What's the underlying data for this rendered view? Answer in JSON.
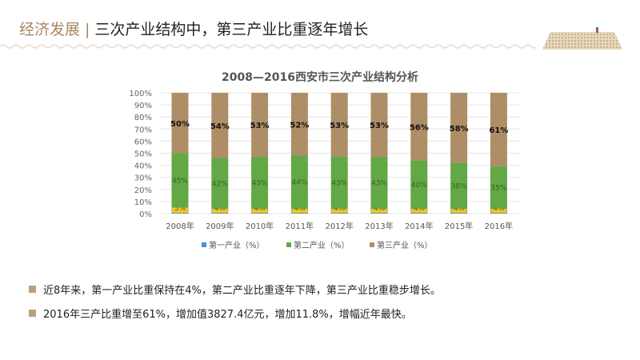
{
  "header": {
    "section": "经济发展",
    "separator": "|",
    "title": "三次产业结构中，第三产业比重逐年增长"
  },
  "colors": {
    "primary": "#4a90d9",
    "secondary": "#62a844",
    "tertiary": "#ae8e67",
    "label_box": "#f5c518",
    "accent": "#a8885e"
  },
  "chart_data": {
    "type": "bar",
    "stacked": true,
    "title": "2008—2016西安市三次产业结构分析",
    "categories": [
      "2008年",
      "2009年",
      "2010年",
      "2011年",
      "2012年",
      "2013年",
      "2014年",
      "2015年",
      "2016年"
    ],
    "series": [
      {
        "name": "第一产业（%）",
        "values": [
          5,
          4,
          4,
          4,
          4,
          4,
          4,
          4,
          4
        ],
        "labels": [
          "5%",
          "4%",
          "4%",
          "4%",
          "4%",
          "4%",
          "4%",
          "4%",
          "4%"
        ]
      },
      {
        "name": "第二产业（%）",
        "values": [
          45,
          42,
          43,
          44,
          43,
          43,
          40,
          38,
          35
        ],
        "labels": [
          "45%",
          "42%",
          "43%",
          "44%",
          "43%",
          "43%",
          "40%",
          "38%",
          "35%"
        ]
      },
      {
        "name": "第三产业（%）",
        "values": [
          50,
          54,
          53,
          52,
          53,
          53,
          56,
          58,
          61
        ],
        "labels": [
          "50%",
          "54%",
          "53%",
          "52%",
          "53%",
          "53%",
          "56%",
          "58%",
          "61%"
        ]
      }
    ],
    "yticks": [
      "0%",
      "10%",
      "20%",
      "30%",
      "40%",
      "50%",
      "60%",
      "70%",
      "80%",
      "90%",
      "100%"
    ],
    "ylim": [
      0,
      100
    ],
    "grid": true,
    "legend": "bottom"
  },
  "notes": [
    "近8年来，第一产业比重保持在4%，第二产业比重逐年下降，第三产业比重稳步增长。",
    "2016年三产比重增至61%，增加值3827.4亿元，增加11.8%，增幅近年最快。"
  ]
}
